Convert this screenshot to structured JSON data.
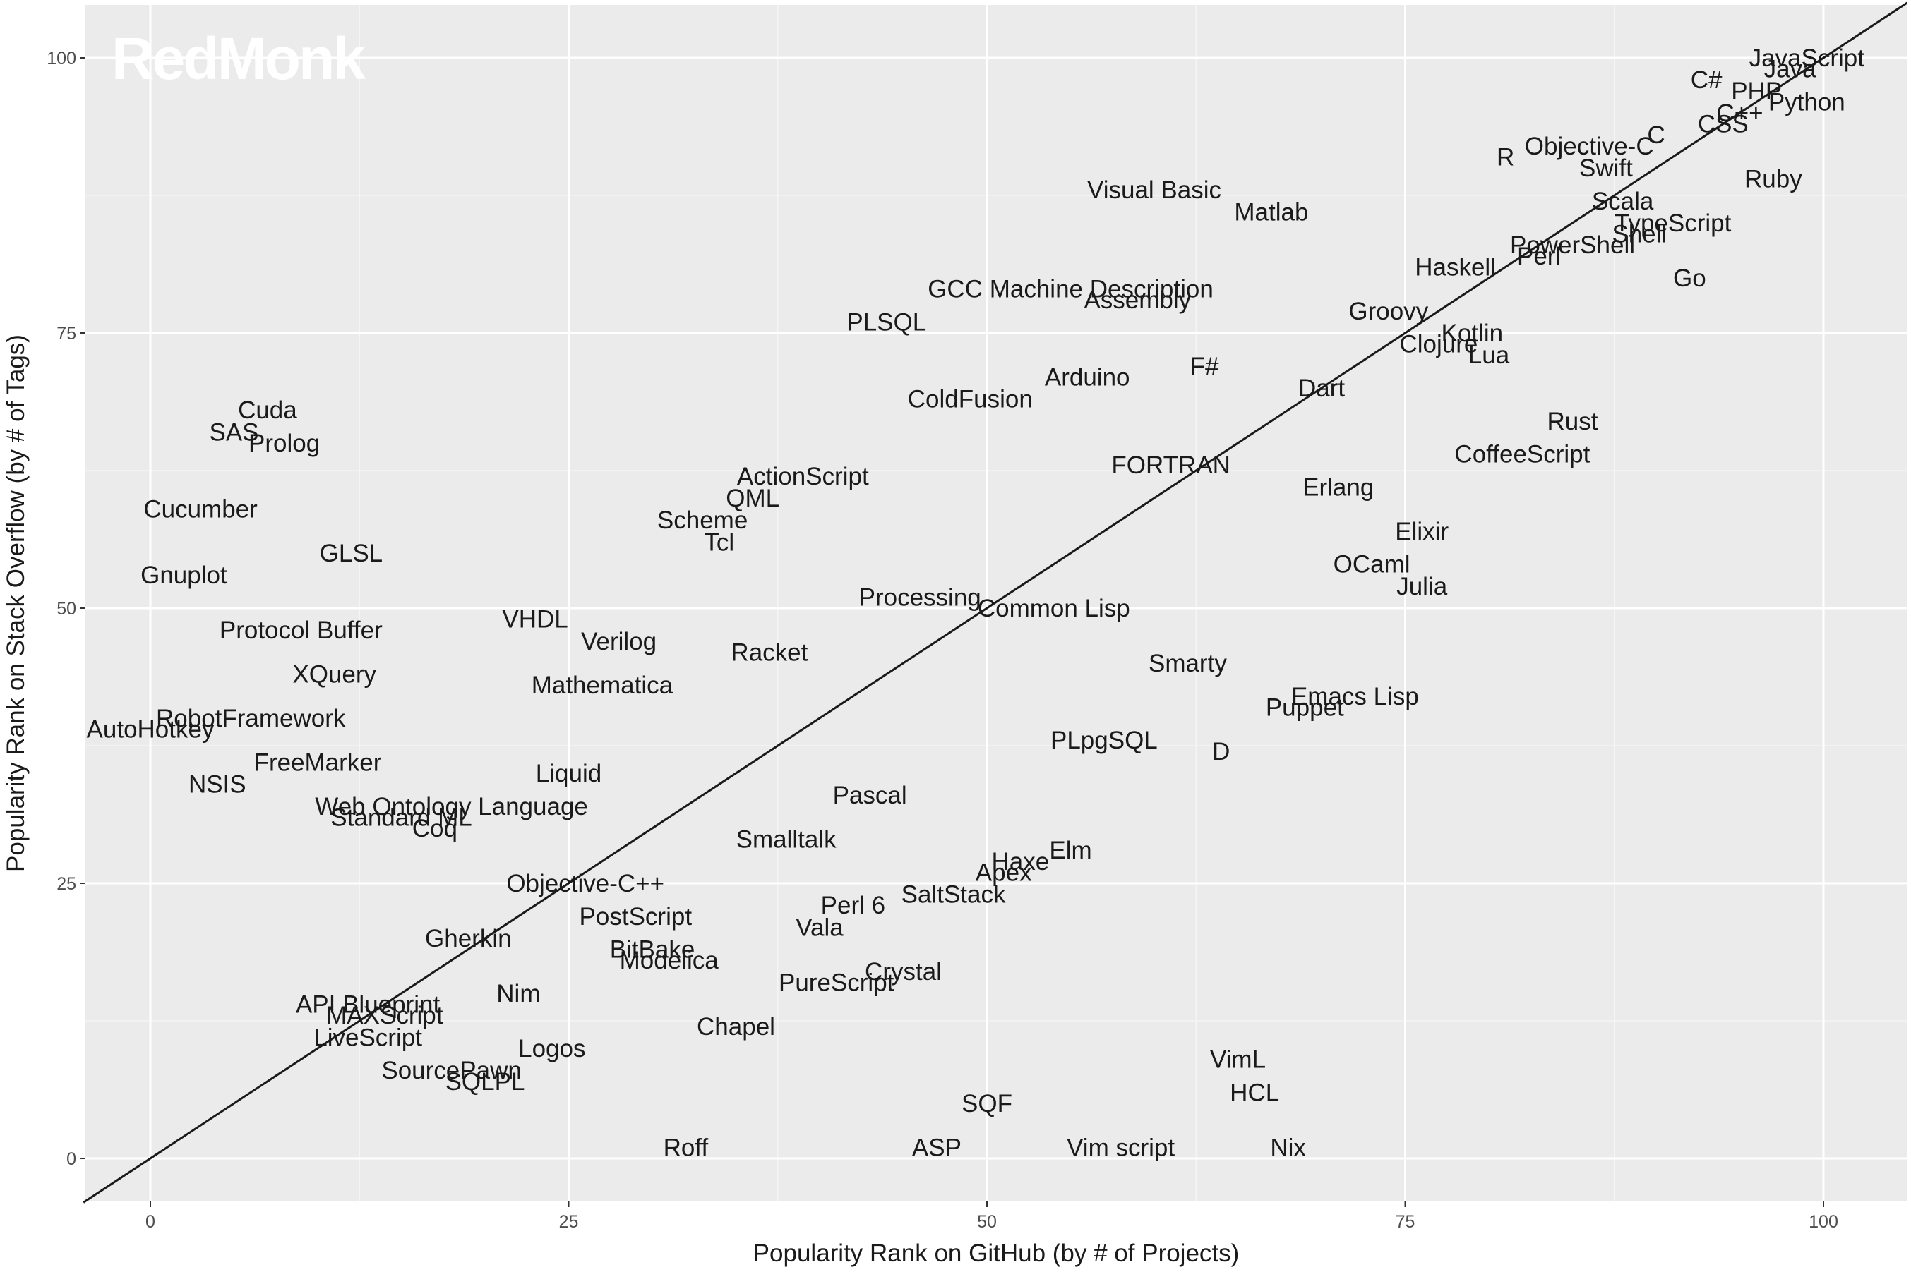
{
  "logo": {
    "text": "RedMonk"
  },
  "chart_data": {
    "type": "scatter",
    "xlabel": "Popularity Rank on GitHub (by # of Projects)",
    "ylabel": "Popularity Rank on Stack Overflow (by # of Tags)",
    "xlim": [
      -4,
      105
    ],
    "ylim": [
      -4,
      105
    ],
    "xticks": [
      0,
      25,
      50,
      75,
      100
    ],
    "yticks": [
      0,
      25,
      50,
      75,
      100
    ],
    "grid": true,
    "reference_line": "y = x",
    "colors": {
      "panel": "#ebebeb",
      "grid": "#ffffff",
      "text": "#1a1a1a",
      "line": "#1a1a1a"
    },
    "points": [
      {
        "label": "JavaScript",
        "x": 99,
        "y": 100
      },
      {
        "label": "Java",
        "x": 98,
        "y": 99
      },
      {
        "label": "C#",
        "x": 93,
        "y": 98
      },
      {
        "label": "PHP",
        "x": 96,
        "y": 97
      },
      {
        "label": "Python",
        "x": 99,
        "y": 96
      },
      {
        "label": "C++",
        "x": 95,
        "y": 95
      },
      {
        "label": "CSS",
        "x": 94,
        "y": 94
      },
      {
        "label": "C",
        "x": 90,
        "y": 93
      },
      {
        "label": "Objective-C",
        "x": 86,
        "y": 92
      },
      {
        "label": "R",
        "x": 81,
        "y": 91
      },
      {
        "label": "Swift",
        "x": 87,
        "y": 90
      },
      {
        "label": "Ruby",
        "x": 97,
        "y": 89
      },
      {
        "label": "Visual Basic",
        "x": 60,
        "y": 88
      },
      {
        "label": "Scala",
        "x": 88,
        "y": 87
      },
      {
        "label": "Matlab",
        "x": 67,
        "y": 86
      },
      {
        "label": "TypeScript",
        "x": 91,
        "y": 85
      },
      {
        "label": "Shell",
        "x": 89,
        "y": 84
      },
      {
        "label": "PowerShell",
        "x": 85,
        "y": 83
      },
      {
        "label": "Perl",
        "x": 83,
        "y": 82
      },
      {
        "label": "Haskell",
        "x": 78,
        "y": 81
      },
      {
        "label": "Go",
        "x": 92,
        "y": 80
      },
      {
        "label": "GCC Machine Description",
        "x": 55,
        "y": 79
      },
      {
        "label": "Assembly",
        "x": 59,
        "y": 78
      },
      {
        "label": "Groovy",
        "x": 74,
        "y": 77
      },
      {
        "label": "PLSQL",
        "x": 44,
        "y": 76
      },
      {
        "label": "Kotlin",
        "x": 79,
        "y": 75
      },
      {
        "label": "Clojure",
        "x": 77,
        "y": 74
      },
      {
        "label": "Lua",
        "x": 80,
        "y": 73
      },
      {
        "label": "F#",
        "x": 63,
        "y": 72
      },
      {
        "label": "Arduino",
        "x": 56,
        "y": 71
      },
      {
        "label": "Dart",
        "x": 70,
        "y": 70
      },
      {
        "label": "ColdFusion",
        "x": 49,
        "y": 69
      },
      {
        "label": "Cuda",
        "x": 7,
        "y": 68
      },
      {
        "label": "Rust",
        "x": 85,
        "y": 67
      },
      {
        "label": "SAS",
        "x": 5,
        "y": 66
      },
      {
        "label": "Prolog",
        "x": 8,
        "y": 65
      },
      {
        "label": "CoffeeScript",
        "x": 82,
        "y": 64
      },
      {
        "label": "FORTRAN",
        "x": 61,
        "y": 63
      },
      {
        "label": "ActionScript",
        "x": 39,
        "y": 62
      },
      {
        "label": "Erlang",
        "x": 71,
        "y": 61
      },
      {
        "label": "QML",
        "x": 36,
        "y": 60
      },
      {
        "label": "Cucumber",
        "x": 3,
        "y": 59
      },
      {
        "label": "Scheme",
        "x": 33,
        "y": 58
      },
      {
        "label": "Elixir",
        "x": 76,
        "y": 57
      },
      {
        "label": "Tcl",
        "x": 34,
        "y": 56
      },
      {
        "label": "GLSL",
        "x": 12,
        "y": 55
      },
      {
        "label": "OCaml",
        "x": 73,
        "y": 54
      },
      {
        "label": "Gnuplot",
        "x": 2,
        "y": 53
      },
      {
        "label": "Julia",
        "x": 76,
        "y": 52
      },
      {
        "label": "Processing",
        "x": 46,
        "y": 51
      },
      {
        "label": "Common Lisp",
        "x": 54,
        "y": 50
      },
      {
        "label": "VHDL",
        "x": 23,
        "y": 49
      },
      {
        "label": "Protocol Buffer",
        "x": 9,
        "y": 48
      },
      {
        "label": "Verilog",
        "x": 28,
        "y": 47
      },
      {
        "label": "Racket",
        "x": 37,
        "y": 46
      },
      {
        "label": "Smarty",
        "x": 62,
        "y": 45
      },
      {
        "label": "XQuery",
        "x": 11,
        "y": 44
      },
      {
        "label": "Mathematica",
        "x": 27,
        "y": 43
      },
      {
        "label": "Emacs Lisp",
        "x": 72,
        "y": 42
      },
      {
        "label": "Puppet",
        "x": 69,
        "y": 41
      },
      {
        "label": "RobotFramework",
        "x": 6,
        "y": 40
      },
      {
        "label": "AutoHotkey",
        "x": 0,
        "y": 39
      },
      {
        "label": "PLpgSQL",
        "x": 57,
        "y": 38
      },
      {
        "label": "D",
        "x": 64,
        "y": 37
      },
      {
        "label": "FreeMarker",
        "x": 10,
        "y": 36
      },
      {
        "label": "Liquid",
        "x": 25,
        "y": 35
      },
      {
        "label": "NSIS",
        "x": 4,
        "y": 34
      },
      {
        "label": "Pascal",
        "x": 43,
        "y": 33
      },
      {
        "label": "Web Ontology Language",
        "x": 18,
        "y": 32
      },
      {
        "label": "Standard ML",
        "x": 15,
        "y": 31
      },
      {
        "label": "Coq",
        "x": 17,
        "y": 30
      },
      {
        "label": "Smalltalk",
        "x": 38,
        "y": 29
      },
      {
        "label": "Elm",
        "x": 55,
        "y": 28
      },
      {
        "label": "Haxe",
        "x": 52,
        "y": 27
      },
      {
        "label": "Apex",
        "x": 51,
        "y": 26
      },
      {
        "label": "Objective-C++",
        "x": 26,
        "y": 25
      },
      {
        "label": "SaltStack",
        "x": 48,
        "y": 24
      },
      {
        "label": "Perl 6",
        "x": 42,
        "y": 23
      },
      {
        "label": "PostScript",
        "x": 29,
        "y": 22
      },
      {
        "label": "Vala",
        "x": 40,
        "y": 21
      },
      {
        "label": "Gherkin",
        "x": 19,
        "y": 20
      },
      {
        "label": "BitBake",
        "x": 30,
        "y": 19
      },
      {
        "label": "Modelica",
        "x": 31,
        "y": 18
      },
      {
        "label": "Crystal",
        "x": 45,
        "y": 17
      },
      {
        "label": "PureScript",
        "x": 41,
        "y": 16
      },
      {
        "label": "Nim",
        "x": 22,
        "y": 15
      },
      {
        "label": "API Blueprint",
        "x": 13,
        "y": 14
      },
      {
        "label": "MAXScript",
        "x": 14,
        "y": 13
      },
      {
        "label": "Chapel",
        "x": 35,
        "y": 12
      },
      {
        "label": "LiveScript",
        "x": 13,
        "y": 11
      },
      {
        "label": "Logos",
        "x": 24,
        "y": 10
      },
      {
        "label": "VimL",
        "x": 65,
        "y": 9
      },
      {
        "label": "SourcePawn",
        "x": 18,
        "y": 8
      },
      {
        "label": "SQLPL",
        "x": 20,
        "y": 7
      },
      {
        "label": "HCL",
        "x": 66,
        "y": 6
      },
      {
        "label": "SQF",
        "x": 50,
        "y": 5
      },
      {
        "label": "Roff",
        "x": 32,
        "y": 1
      },
      {
        "label": "ASP",
        "x": 47,
        "y": 1
      },
      {
        "label": "Vim script",
        "x": 58,
        "y": 1
      },
      {
        "label": "Nix",
        "x": 68,
        "y": 1
      }
    ]
  }
}
